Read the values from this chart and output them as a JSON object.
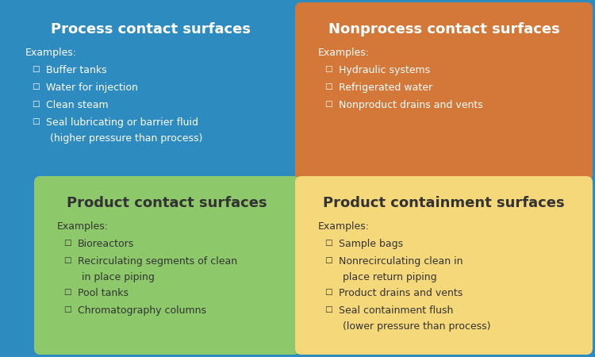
{
  "outer_bg": "#2e8bc0",
  "panels": [
    {
      "id": "top_left",
      "bg_color": "#2e8bc0",
      "title": "Process contact surfaces",
      "title_color": "#ffffff",
      "label_color": "#ffffff",
      "bullet_color": "#ffffff",
      "examples_label": "Examples:",
      "bullets": [
        [
          "Buffer tanks"
        ],
        [
          "Water for injection"
        ],
        [
          "Clean steam"
        ],
        [
          "Seal lubricating or barrier fluid",
          "(higher pressure than process)"
        ]
      ]
    },
    {
      "id": "top_right",
      "bg_color": "#d4783a",
      "title": "Nonprocess contact surfaces",
      "title_color": "#ffffff",
      "label_color": "#ffffff",
      "bullet_color": "#ffffff",
      "examples_label": "Examples:",
      "bullets": [
        [
          "Hydraulic systems"
        ],
        [
          "Refrigerated water"
        ],
        [
          "Nonproduct drains and vents"
        ]
      ]
    },
    {
      "id": "bottom_left",
      "bg_color": "#8dc96a",
      "title": "Product contact surfaces",
      "title_color": "#333333",
      "label_color": "#333333",
      "bullet_color": "#333333",
      "examples_label": "Examples:",
      "bullets": [
        [
          "Bioreactors"
        ],
        [
          "Recirculating segments of clean",
          "in place piping"
        ],
        [
          "Pool tanks"
        ],
        [
          "Chromatography columns"
        ]
      ]
    },
    {
      "id": "bottom_right",
      "bg_color": "#f5d87a",
      "title": "Product containment surfaces",
      "title_color": "#333333",
      "label_color": "#333333",
      "bullet_color": "#333333",
      "examples_label": "Examples:",
      "bullets": [
        [
          "Sample bags"
        ],
        [
          "Nonrecirculating clean in",
          "place return piping"
        ],
        [
          "Product drains and vents"
        ],
        [
          "Seal containment flush",
          "(lower pressure than process)"
        ]
      ]
    }
  ],
  "fig_width": 7.5,
  "fig_height": 4.5,
  "dpi": 100
}
